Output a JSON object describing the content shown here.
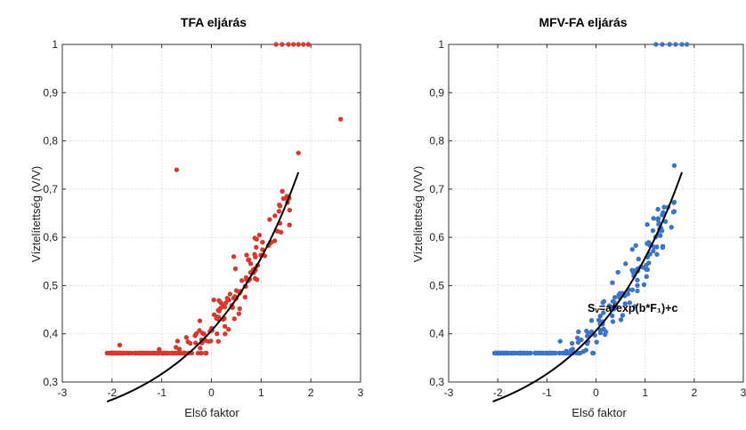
{
  "chart_data": [
    {
      "type": "scatter",
      "title": "TFA eljárás",
      "xlabel": "Első faktor",
      "ylabel": "Víztelítettség (V/V)",
      "xlim": [
        -3,
        3
      ],
      "ylim": [
        0.3,
        1.0
      ],
      "xticks": [
        "-3",
        "-2",
        "-1",
        "0",
        "1",
        "2",
        "3"
      ],
      "yticks": [
        "0,3",
        "0,4",
        "0,5",
        "0,6",
        "0,7",
        "0,8",
        "0,9",
        "1"
      ],
      "grid": true,
      "marker_color": "#d63a2f",
      "curve_color": "#000000",
      "fit_curve": {
        "a": 0.2213,
        "b": 0.52,
        "c": 0.1852,
        "x_range": [
          -2.1,
          1.75
        ]
      },
      "outliers": [
        {
          "x": 2.6,
          "y": 0.845
        },
        {
          "x": 1.75,
          "y": 0.775
        },
        {
          "x": 1.38,
          "y": 0.665
        },
        {
          "x": 0.45,
          "y": 0.56
        },
        {
          "x": 0.35,
          "y": 0.47
        },
        {
          "x": -0.7,
          "y": 0.74
        }
      ],
      "saturated_points": [
        {
          "x": 1.3,
          "y": 1.0
        },
        {
          "x": 1.42,
          "y": 1.0
        },
        {
          "x": 1.55,
          "y": 1.0
        },
        {
          "x": 1.65,
          "y": 1.0
        },
        {
          "x": 1.75,
          "y": 1.0
        },
        {
          "x": 1.85,
          "y": 1.0
        },
        {
          "x": 1.95,
          "y": 1.0
        }
      ],
      "cloud": {
        "count": 220,
        "x_range": [
          -2.1,
          1.6
        ],
        "y_spread": 0.03,
        "seed": 11
      }
    },
    {
      "type": "scatter",
      "title": "MFV-FA eljárás",
      "xlabel": "Első faktor",
      "ylabel": "Víztelítettség (V/V)",
      "xlim": [
        -3,
        3
      ],
      "ylim": [
        0.3,
        1.0
      ],
      "xticks": [
        "-3",
        "-2",
        "-1",
        "0",
        "1",
        "2",
        "3"
      ],
      "yticks": [
        "0,3",
        "0,4",
        "0,5",
        "0,6",
        "0,7",
        "0,8",
        "0,9",
        "1"
      ],
      "grid": true,
      "marker_color": "#3e74c8",
      "curve_color": "#000000",
      "annotation": "Sᵥ=a*exp(b*F₁)+c",
      "fit_curve": {
        "a": 0.2213,
        "b": 0.52,
        "c": 0.1852,
        "x_range": [
          -2.1,
          1.75
        ]
      },
      "outliers": [],
      "saturated_points": [
        {
          "x": 1.22,
          "y": 1.0
        },
        {
          "x": 1.35,
          "y": 1.0
        },
        {
          "x": 1.5,
          "y": 1.0
        },
        {
          "x": 1.62,
          "y": 1.0
        },
        {
          "x": 1.75,
          "y": 1.0
        },
        {
          "x": 1.85,
          "y": 1.0
        }
      ],
      "cloud": {
        "count": 230,
        "x_range": [
          -2.1,
          1.6
        ],
        "y_spread": 0.025,
        "seed": 23
      }
    }
  ]
}
